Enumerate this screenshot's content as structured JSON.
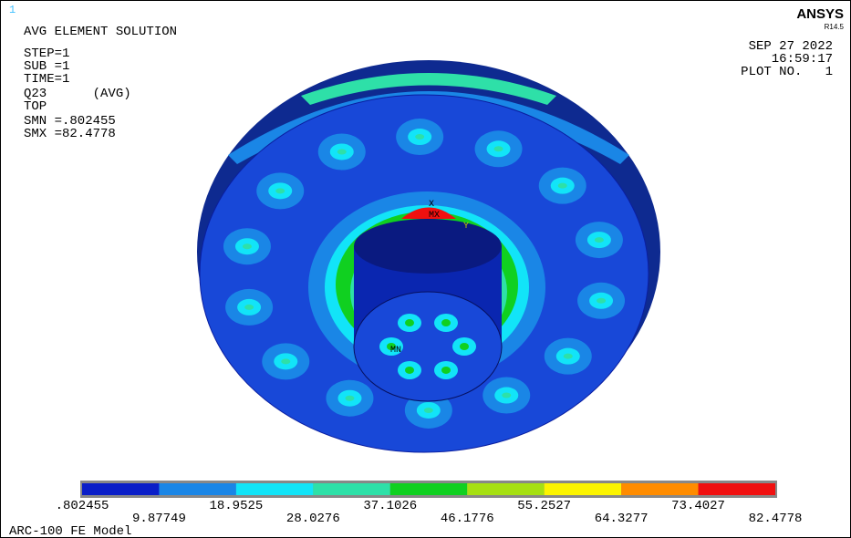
{
  "window_number": "1",
  "title_block": {
    "lines": [
      "AVG ELEMENT SOLUTION",
      "STEP=1",
      "SUB =1",
      "TIME=1",
      "Q23      (AVG)",
      "TOP",
      "SMN =.802455",
      "SMX =82.4778"
    ]
  },
  "brand": {
    "name": "ANSYS",
    "version": "R14.5"
  },
  "date_block": {
    "lines": [
      "SEP 27 2022",
      "16:59:17",
      "PLOT NO.   1"
    ]
  },
  "markers": {
    "max": "MX",
    "min": "MN",
    "x_axis": "X",
    "y_axis": "Y"
  },
  "legend": {
    "colors": [
      "#0a1ec8",
      "#1a86e6",
      "#12e4f8",
      "#2ee0a8",
      "#10d020",
      "#a6e012",
      "#fcf400",
      "#ff8c00",
      "#f01010"
    ],
    "labels": [
      ".802455",
      "9.87749",
      "18.9525",
      "28.0276",
      "37.1026",
      "46.1776",
      "55.2527",
      "64.3277",
      "73.4027",
      "82.4778"
    ]
  },
  "model_title": "ARC-100 FE Model"
}
